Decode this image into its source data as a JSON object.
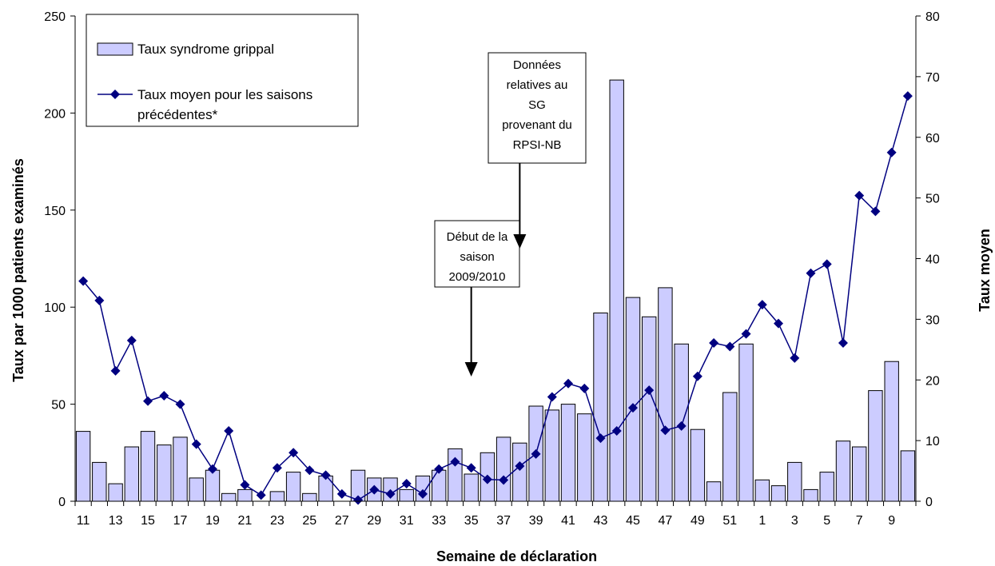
{
  "chart_data": {
    "type": "bar",
    "xlabel": "Semaine de déclaration",
    "ylabel": "Taux par 1000 patients examinés",
    "y2label": "Taux moyen",
    "ylim": [
      0,
      250
    ],
    "y2lim": [
      0,
      80
    ],
    "yticks": [
      0,
      50,
      100,
      150,
      200,
      250
    ],
    "y2ticks": [
      0,
      10,
      20,
      30,
      40,
      50,
      60,
      70,
      80
    ],
    "grid": false,
    "legend_position": "top-left",
    "categories": [
      "11",
      "12",
      "13",
      "14",
      "15",
      "16",
      "17",
      "18",
      "19",
      "20",
      "21",
      "22",
      "23",
      "24",
      "25",
      "26",
      "27",
      "28",
      "29",
      "30",
      "31",
      "32",
      "33",
      "34",
      "35",
      "36",
      "37",
      "38",
      "39",
      "40",
      "41",
      "42",
      "43",
      "44",
      "45",
      "46",
      "47",
      "48",
      "49",
      "50",
      "51",
      "52",
      "1",
      "2",
      "3",
      "4",
      "5",
      "6",
      "7",
      "8",
      "9",
      "10"
    ],
    "tick_labels": [
      "11",
      "13",
      "15",
      "17",
      "19",
      "21",
      "23",
      "25",
      "27",
      "29",
      "31",
      "33",
      "35",
      "37",
      "39",
      "41",
      "43",
      "45",
      "47",
      "49",
      "51",
      "1",
      "3",
      "5",
      "7",
      "9"
    ],
    "series": [
      {
        "name": "Taux syndrome grippal",
        "type": "bar",
        "axis": "left",
        "color": "#ccccff",
        "values": [
          36,
          20,
          9,
          28,
          36,
          29,
          33,
          12,
          16,
          4,
          6,
          0,
          5,
          15,
          4,
          13,
          0,
          16,
          12,
          12,
          6,
          13,
          16,
          27,
          14,
          25,
          33,
          30,
          49,
          47,
          50,
          45,
          97,
          217,
          105,
          95,
          110,
          81,
          37,
          10,
          56,
          81,
          11,
          8,
          20,
          6,
          15,
          31,
          28,
          57,
          72,
          26
        ]
      },
      {
        "name": "Taux moyen pour les saisons précédentes*",
        "type": "line",
        "axis": "right",
        "color": "#000080",
        "values": [
          36.3,
          33.1,
          21.5,
          26.5,
          16.5,
          17.4,
          16.0,
          9.4,
          5.3,
          11.6,
          2.7,
          1.0,
          5.5,
          8.0,
          5.1,
          4.3,
          1.2,
          0.2,
          1.9,
          1.2,
          2.9,
          1.2,
          5.3,
          6.5,
          5.5,
          3.6,
          3.5,
          5.8,
          7.8,
          17.2,
          19.4,
          18.6,
          10.4,
          11.6,
          15.4,
          18.3,
          11.7,
          12.4,
          20.6,
          26.1,
          25.5,
          27.6,
          32.4,
          29.3,
          23.6,
          37.6,
          39.1,
          26.1,
          50.4,
          47.8,
          57.5,
          66.8
        ]
      }
    ],
    "annotations": [
      {
        "text_lines": [
          "Début de la",
          "saison",
          "2009/2010"
        ],
        "points_to_week": "35"
      },
      {
        "text_lines": [
          "Données",
          "relatives au",
          "SG",
          "provenant du",
          "RPSI-NB"
        ],
        "points_to_week": "38"
      }
    ]
  }
}
